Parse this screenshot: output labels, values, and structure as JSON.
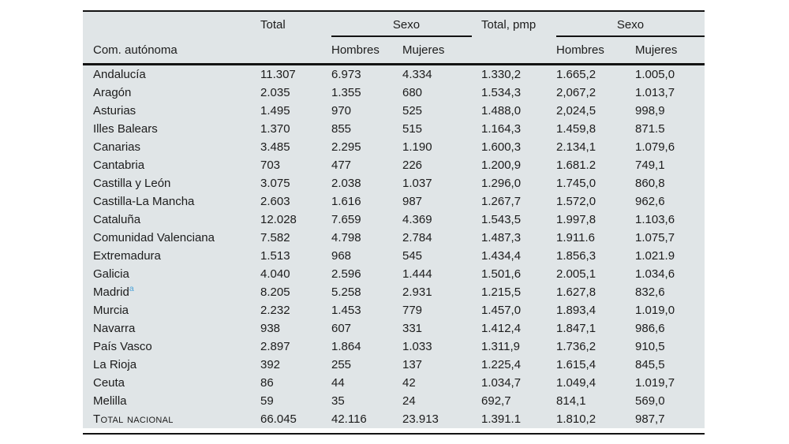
{
  "table": {
    "header": {
      "region": "Com. autónoma",
      "total": "Total",
      "sexo_count": "Sexo",
      "total_pmp": "Total, pmp",
      "sexo_pmp": "Sexo",
      "hombres": "Hombres",
      "mujeres": "Mujeres"
    },
    "rows": [
      {
        "region": "Andalucía",
        "values": [
          "11.307",
          "6.973",
          "4.334",
          "1.330,2",
          "1.665,2",
          "1.005,0"
        ]
      },
      {
        "region": "Aragón",
        "values": [
          "2.035",
          "1.355",
          "680",
          "1.534,3",
          "2,067,2",
          "1.013,7"
        ]
      },
      {
        "region": "Asturias",
        "values": [
          "1.495",
          "970",
          "525",
          "1.488,0",
          "2,024,5",
          "998,9"
        ]
      },
      {
        "region": "Illes Balears",
        "values": [
          "1.370",
          "855",
          "515",
          "1.164,3",
          "1.459,8",
          "871.5"
        ]
      },
      {
        "region": "Canarias",
        "values": [
          "3.485",
          "2.295",
          "1.190",
          "1.600,3",
          "2.134,1",
          "1.079,6"
        ]
      },
      {
        "region": "Cantabria",
        "values": [
          "703",
          "477",
          "226",
          "1.200,9",
          "1.681.2",
          "749,1"
        ]
      },
      {
        "region": "Castilla y León",
        "values": [
          "3.075",
          "2.038",
          "1.037",
          "1.296,0",
          "1.745,0",
          "860,8"
        ]
      },
      {
        "region": "Castilla-La Mancha",
        "values": [
          "2.603",
          "1.616",
          "987",
          "1.267,7",
          "1.572,0",
          "962,6"
        ]
      },
      {
        "region": "Cataluña",
        "values": [
          "12.028",
          "7.659",
          "4.369",
          "1.543,5",
          "1.997,8",
          "1.103,6"
        ]
      },
      {
        "region": "Comunidad Valenciana",
        "values": [
          "7.582",
          "4.798",
          "2.784",
          "1.487,3",
          "1.911.6",
          "1.075,7"
        ]
      },
      {
        "region": "Extremadura",
        "values": [
          "1.513",
          "968",
          "545",
          "1.434,4",
          "1.856,3",
          "1.021.9"
        ]
      },
      {
        "region": "Galicia",
        "values": [
          "4.040",
          "2.596",
          "1.444",
          "1.501,6",
          "2.005,1",
          "1.034,6"
        ]
      },
      {
        "region": "Madrid",
        "footnote": "a",
        "values": [
          "8.205",
          "5.258",
          "2.931",
          "1.215,5",
          "1.627,8",
          "832,6"
        ]
      },
      {
        "region": "Murcia",
        "values": [
          "2.232",
          "1.453",
          "779",
          "1.457,0",
          "1.893,4",
          "1.019,0"
        ]
      },
      {
        "region": "Navarra",
        "values": [
          "938",
          "607",
          "331",
          "1.412,4",
          "1.847,1",
          "986,6"
        ]
      },
      {
        "region": "País Vasco",
        "values": [
          "2.897",
          "1.864",
          "1.033",
          "1.311,9",
          "1.736,2",
          "910,5"
        ]
      },
      {
        "region": "La Rioja",
        "values": [
          "392",
          "255",
          "137",
          "1.225,4",
          "1.615,4",
          "845,5"
        ]
      },
      {
        "region": "Ceuta",
        "values": [
          "86",
          "44",
          "42",
          "1.034,7",
          "1.049,4",
          "1.019,7"
        ]
      },
      {
        "region": "Melilla",
        "values": [
          "59",
          "35",
          "24",
          "692,7",
          "814,1",
          "569,0"
        ]
      },
      {
        "region": "Total nacional",
        "smallcaps": true,
        "values": [
          "66.045",
          "42.116",
          "23.913",
          "1.391.1",
          "1.810,2",
          "987,7"
        ]
      }
    ],
    "colors": {
      "table_background": "#e0e5e7",
      "rule": "#131313",
      "text": "#1c1c1c",
      "footnote_marker": "#4da3d8"
    }
  }
}
